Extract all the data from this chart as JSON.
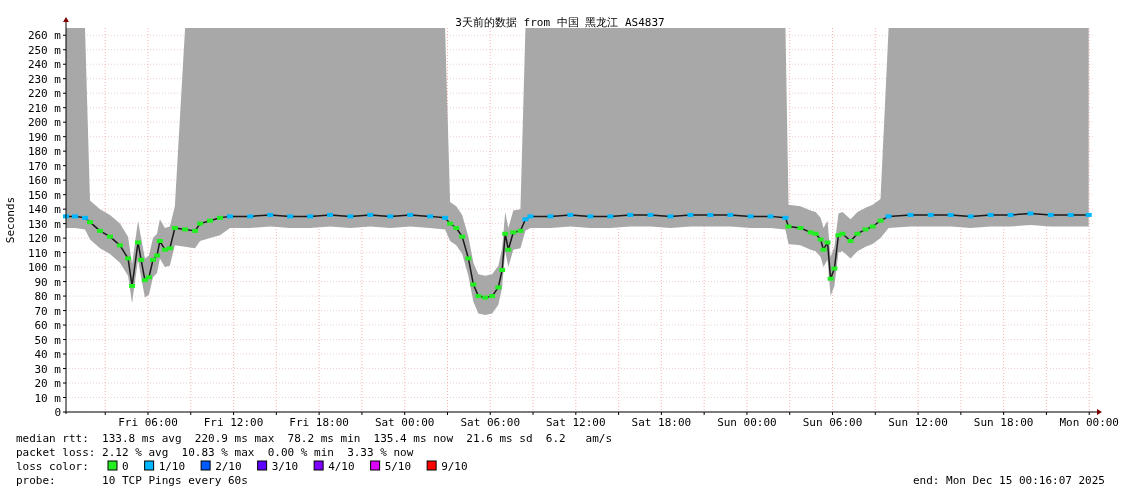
{
  "chart_data": {
    "type": "line",
    "title": "3天前的数据 from 中国 黑龙江 AS4837",
    "ylabel": "Seconds",
    "legend_title": "loss color:",
    "legend": "bottom",
    "grid": true,
    "xlim": [
      "2025-12-12T00:15",
      "2025-12-15T00:16"
    ],
    "ylim": [
      0,
      265
    ],
    "xticks": [
      {
        "value": "2025-12-12T03:00",
        "label": null
      },
      {
        "value": "2025-12-12T06:00",
        "label": "Fri 06:00"
      },
      {
        "value": "2025-12-12T09:00",
        "label": null
      },
      {
        "value": "2025-12-12T12:00",
        "label": "Fri 12:00"
      },
      {
        "value": "2025-12-12T15:00",
        "label": null
      },
      {
        "value": "2025-12-12T18:00",
        "label": "Fri 18:00"
      },
      {
        "value": "2025-12-12T21:00",
        "label": null
      },
      {
        "value": "2025-12-13T00:00",
        "label": "Sat 00:00"
      },
      {
        "value": "2025-12-13T03:00",
        "label": null
      },
      {
        "value": "2025-12-13T06:00",
        "label": "Sat 06:00"
      },
      {
        "value": "2025-12-13T09:00",
        "label": null
      },
      {
        "value": "2025-12-13T12:00",
        "label": "Sat 12:00"
      },
      {
        "value": "2025-12-13T15:00",
        "label": null
      },
      {
        "value": "2025-12-13T18:00",
        "label": "Sat 18:00"
      },
      {
        "value": "2025-12-13T21:00",
        "label": null
      },
      {
        "value": "2025-12-14T00:00",
        "label": "Sun 00:00"
      },
      {
        "value": "2025-12-14T03:00",
        "label": null
      },
      {
        "value": "2025-12-14T06:00",
        "label": "Sun 06:00"
      },
      {
        "value": "2025-12-14T09:00",
        "label": null
      },
      {
        "value": "2025-12-14T12:00",
        "label": "Sun 12:00"
      },
      {
        "value": "2025-12-14T15:00",
        "label": null
      },
      {
        "value": "2025-12-14T18:00",
        "label": "Sun 18:00"
      },
      {
        "value": "2025-12-14T21:00",
        "label": null
      },
      {
        "value": "2025-12-15T00:00",
        "label": "Mon 00:00"
      }
    ],
    "yticks": [
      0,
      {
        "value": 10,
        "label": "10 m"
      },
      {
        "value": 20,
        "label": "20 m"
      },
      {
        "value": 30,
        "label": "30 m"
      },
      {
        "value": 40,
        "label": "40 m"
      },
      {
        "value": 50,
        "label": "50 m"
      },
      {
        "value": 60,
        "label": "60 m"
      },
      {
        "value": 70,
        "label": "70 m"
      },
      {
        "value": 80,
        "label": "80 m"
      },
      {
        "value": 90,
        "label": "90 m"
      },
      {
        "value": 100,
        "label": "100 m"
      },
      {
        "value": 110,
        "label": "110 m"
      },
      {
        "value": 120,
        "label": "120 m"
      },
      {
        "value": 130,
        "label": "130 m"
      },
      {
        "value": 140,
        "label": "140 m"
      },
      {
        "value": 150,
        "label": "150 m"
      },
      {
        "value": 160,
        "label": "160 m"
      },
      {
        "value": 170,
        "label": "170 m"
      },
      {
        "value": 180,
        "label": "180 m"
      },
      {
        "value": 190,
        "label": "190 m"
      },
      {
        "value": 200,
        "label": "200 m"
      },
      {
        "value": 210,
        "label": "210 m"
      },
      {
        "value": 220,
        "label": "220 m"
      },
      {
        "value": 230,
        "label": "230 m"
      },
      {
        "value": 240,
        "label": "240 m"
      },
      {
        "value": 250,
        "label": "250 m"
      },
      {
        "value": 260,
        "label": "260 m"
      }
    ],
    "series": [
      {
        "color": "#1a1a1a",
        "x": [
          "2025-12-12T00:15",
          "2025-12-12T00:53",
          "2025-12-12T01:35",
          "2025-12-12T01:56",
          "2025-12-12T02:38",
          "2025-12-12T03:20",
          "2025-12-12T04:02",
          "2025-12-12T04:36",
          "2025-12-12T04:53",
          "2025-12-12T05:18",
          "2025-12-12T05:31",
          "2025-12-12T05:47",
          "2025-12-12T06:04",
          "2025-12-12T06:21",
          "2025-12-12T06:38",
          "2025-12-12T06:50",
          "2025-12-12T07:11",
          "2025-12-12T07:32",
          "2025-12-12T07:53",
          "2025-12-12T08:36",
          "2025-12-12T09:18",
          "2025-12-12T09:39",
          "2025-12-12T10:21",
          "2025-12-12T11:03",
          "2025-12-12T11:45",
          "2025-12-12T13:10",
          "2025-12-12T14:34",
          "2025-12-12T15:58",
          "2025-12-12T17:22",
          "2025-12-12T18:46",
          "2025-12-12T20:11",
          "2025-12-12T21:35",
          "2025-12-12T22:59",
          "2025-12-13T00:23",
          "2025-12-13T01:47",
          "2025-12-13T02:50",
          "2025-12-13T03:11",
          "2025-12-13T03:37",
          "2025-12-13T04:02",
          "2025-12-13T04:28",
          "2025-12-13T04:49",
          "2025-12-13T05:10",
          "2025-12-13T05:39",
          "2025-12-13T06:08",
          "2025-12-13T06:34",
          "2025-12-13T06:50",
          "2025-12-13T07:03",
          "2025-12-13T07:16",
          "2025-12-13T07:37",
          "2025-12-13T08:07",
          "2025-12-13T08:28",
          "2025-12-13T08:49",
          "2025-12-13T10:13",
          "2025-12-13T11:37",
          "2025-12-13T13:01",
          "2025-12-13T14:25",
          "2025-12-13T15:49",
          "2025-12-13T17:14",
          "2025-12-13T18:38",
          "2025-12-13T20:02",
          "2025-12-13T21:26",
          "2025-12-13T22:50",
          "2025-12-14T00:15",
          "2025-12-14T01:39",
          "2025-12-14T02:42",
          "2025-12-14T02:55",
          "2025-12-14T03:45",
          "2025-12-14T04:28",
          "2025-12-14T04:49",
          "2025-12-14T05:10",
          "2025-12-14T05:22",
          "2025-12-14T05:39",
          "2025-12-14T05:52",
          "2025-12-14T06:08",
          "2025-12-14T06:25",
          "2025-12-14T06:42",
          "2025-12-14T07:16",
          "2025-12-14T07:45",
          "2025-12-14T08:19",
          "2025-12-14T08:49",
          "2025-12-14T09:22",
          "2025-12-14T09:56",
          "2025-12-14T11:28",
          "2025-12-14T12:53",
          "2025-12-14T14:17",
          "2025-12-14T15:41",
          "2025-12-14T17:05",
          "2025-12-14T18:29",
          "2025-12-14T19:53",
          "2025-12-14T21:18",
          "2025-12-14T22:42",
          "2025-12-14T23:58"
        ],
        "values": [
          135,
          135,
          134,
          131,
          125,
          121,
          115,
          106,
          87,
          117,
          105,
          91,
          93,
          105,
          108,
          118,
          112,
          113,
          127,
          126,
          125,
          130,
          132,
          134,
          135,
          135,
          136,
          135,
          135,
          136,
          135,
          136,
          135,
          136,
          135,
          134,
          130,
          127,
          121,
          106,
          88,
          80,
          79,
          80,
          86,
          98,
          123,
          112,
          124,
          125,
          133,
          135,
          135,
          136,
          135,
          135,
          136,
          136,
          135,
          136,
          136,
          136,
          135,
          135,
          134,
          128,
          127,
          124,
          123,
          119,
          112,
          117,
          92,
          99,
          122,
          123,
          118,
          123,
          126,
          128,
          132,
          135,
          136,
          136,
          136,
          135,
          136,
          136,
          137,
          136,
          136,
          136
        ],
        "lower": [
          127,
          127,
          126,
          119,
          113,
          109,
          103,
          94,
          75,
          105,
          93,
          79,
          81,
          93,
          96,
          106,
          100,
          101,
          115,
          114,
          113,
          118,
          120,
          122,
          127,
          127,
          128,
          127,
          127,
          128,
          127,
          128,
          127,
          128,
          127,
          126,
          118,
          115,
          109,
          94,
          76,
          68,
          67,
          68,
          74,
          86,
          111,
          100,
          112,
          113,
          125,
          127,
          127,
          128,
          127,
          127,
          128,
          128,
          127,
          128,
          128,
          128,
          127,
          127,
          126,
          116,
          115,
          112,
          111,
          107,
          100,
          105,
          80,
          87,
          110,
          111,
          106,
          111,
          114,
          116,
          120,
          127,
          128,
          128,
          128,
          127,
          128,
          128,
          129,
          128,
          128,
          128
        ],
        "upper": [
          265,
          265,
          265,
          146,
          140,
          136,
          130,
          121,
          102,
          132,
          120,
          106,
          108,
          120,
          123,
          133,
          127,
          128,
          142,
          265,
          265,
          265,
          265,
          265,
          265,
          265,
          265,
          265,
          265,
          265,
          265,
          265,
          265,
          265,
          265,
          265,
          145,
          142,
          136,
          121,
          103,
          95,
          94,
          95,
          101,
          113,
          138,
          127,
          139,
          140,
          265,
          265,
          265,
          265,
          265,
          265,
          265,
          265,
          265,
          265,
          265,
          265,
          265,
          265,
          265,
          143,
          142,
          139,
          138,
          134,
          127,
          132,
          107,
          114,
          137,
          138,
          133,
          138,
          141,
          143,
          147,
          265,
          265,
          265,
          265,
          265,
          265,
          265,
          265,
          265,
          265,
          265
        ]
      },
      {
        "type": "scatter",
        "name": "0",
        "color": "#22ee22",
        "marker": "square",
        "x": [
          "2025-12-12T01:56",
          "2025-12-12T02:38",
          "2025-12-12T03:20",
          "2025-12-12T04:02",
          "2025-12-12T04:36",
          "2025-12-12T04:53",
          "2025-12-12T05:18",
          "2025-12-12T05:31",
          "2025-12-12T05:47",
          "2025-12-12T06:04",
          "2025-12-12T06:21",
          "2025-12-12T06:38",
          "2025-12-12T06:50",
          "2025-12-12T07:11",
          "2025-12-12T07:32",
          "2025-12-12T07:53",
          "2025-12-12T08:36",
          "2025-12-12T09:18",
          "2025-12-12T09:39",
          "2025-12-12T10:21",
          "2025-12-12T11:03",
          "2025-12-13T03:11",
          "2025-12-13T03:37",
          "2025-12-13T04:02",
          "2025-12-13T04:28",
          "2025-12-13T04:49",
          "2025-12-13T05:10",
          "2025-12-13T05:39",
          "2025-12-13T06:08",
          "2025-12-13T06:34",
          "2025-12-13T06:50",
          "2025-12-13T07:03",
          "2025-12-13T07:16",
          "2025-12-13T07:37",
          "2025-12-13T08:07",
          "2025-12-14T02:55",
          "2025-12-14T03:45",
          "2025-12-14T04:28",
          "2025-12-14T04:49",
          "2025-12-14T05:10",
          "2025-12-14T05:22",
          "2025-12-14T05:39",
          "2025-12-14T05:52",
          "2025-12-14T06:08",
          "2025-12-14T06:25",
          "2025-12-14T06:42",
          "2025-12-14T07:16",
          "2025-12-14T07:45",
          "2025-12-14T08:19",
          "2025-12-14T08:49",
          "2025-12-14T09:22"
        ],
        "values": [
          131,
          125,
          121,
          115,
          106,
          87,
          117,
          105,
          91,
          93,
          105,
          108,
          118,
          112,
          113,
          127,
          126,
          125,
          130,
          132,
          134,
          130,
          127,
          121,
          106,
          88,
          80,
          79,
          80,
          86,
          98,
          123,
          112,
          124,
          125,
          128,
          127,
          124,
          123,
          119,
          112,
          117,
          92,
          99,
          122,
          123,
          118,
          123,
          126,
          128,
          132
        ]
      },
      {
        "type": "scatter",
        "name": "1/10",
        "color": "#00b8ff",
        "marker": "square",
        "x": [
          "2025-12-12T00:15",
          "2025-12-12T00:53",
          "2025-12-12T01:35",
          "2025-12-12T11:45",
          "2025-12-12T13:10",
          "2025-12-12T14:34",
          "2025-12-12T15:58",
          "2025-12-12T17:22",
          "2025-12-12T18:46",
          "2025-12-12T20:11",
          "2025-12-12T21:35",
          "2025-12-12T22:59",
          "2025-12-13T00:23",
          "2025-12-13T01:47",
          "2025-12-13T02:50",
          "2025-12-13T08:28",
          "2025-12-13T08:49",
          "2025-12-13T10:13",
          "2025-12-13T11:37",
          "2025-12-13T13:01",
          "2025-12-13T14:25",
          "2025-12-13T15:49",
          "2025-12-13T17:14",
          "2025-12-13T18:38",
          "2025-12-13T20:02",
          "2025-12-13T21:26",
          "2025-12-13T22:50",
          "2025-12-14T00:15",
          "2025-12-14T01:39",
          "2025-12-14T02:42",
          "2025-12-14T09:56",
          "2025-12-14T11:28",
          "2025-12-14T12:53",
          "2025-12-14T14:17",
          "2025-12-14T15:41",
          "2025-12-14T17:05",
          "2025-12-14T18:29",
          "2025-12-14T19:53",
          "2025-12-14T21:18",
          "2025-12-14T22:42",
          "2025-12-14T23:58"
        ],
        "values": [
          135,
          135,
          134,
          135,
          135,
          136,
          135,
          135,
          136,
          135,
          136,
          135,
          136,
          135,
          134,
          133,
          135,
          135,
          136,
          135,
          135,
          136,
          136,
          135,
          136,
          136,
          136,
          135,
          135,
          134,
          135,
          136,
          136,
          136,
          135,
          136,
          136,
          137,
          136,
          136,
          136
        ]
      },
      {
        "type": "scatter",
        "name": "2/10",
        "color": "#0059ff",
        "marker": "square"
      },
      {
        "type": "scatter",
        "name": "3/10",
        "color": "#5e00ff",
        "marker": "square"
      },
      {
        "type": "scatter",
        "name": "4/10",
        "color": "#7e00ff",
        "marker": "square"
      },
      {
        "type": "scatter",
        "name": "5/10",
        "color": "#dd00ff",
        "marker": "square"
      },
      {
        "type": "scatter",
        "name": "9/10",
        "color": "#ff0000",
        "marker": "square"
      }
    ],
    "annotations": [
      "median rtt:  133.8 ms avg  220.9 ms max  78.2 ms min  135.4 ms now  21.6 ms sd  6.2   am/s",
      "packet loss: 2.12 % avg  10.83 % max  0.00 % min  3.33 % now",
      "probe:       10 TCP Pings every 60s",
      "end: Mon Dec 15 00:16:07 2025"
    ]
  }
}
